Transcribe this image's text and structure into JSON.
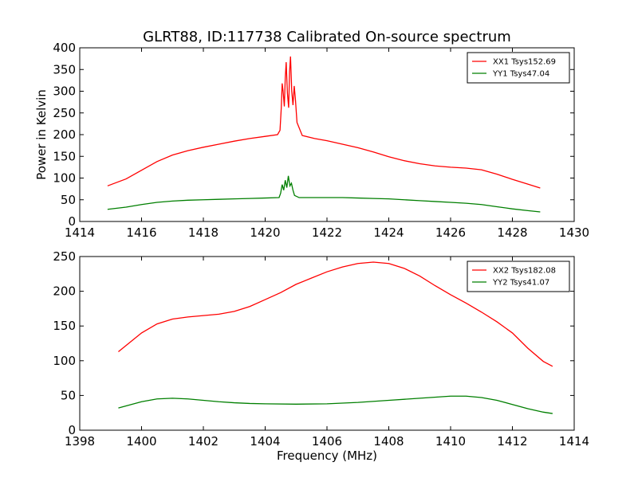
{
  "figure": {
    "title": "GLRT88, ID:117738 Calibrated On-source spectrum"
  },
  "chart_data": [
    {
      "type": "line",
      "title": "GLRT88, ID:117738 Calibrated On-source spectrum",
      "xlabel": "",
      "ylabel": "Power in Kelvin",
      "xlim": [
        1414,
        1430
      ],
      "ylim": [
        0,
        400
      ],
      "xticks": [
        1414,
        1416,
        1418,
        1420,
        1422,
        1424,
        1426,
        1428,
        1430
      ],
      "yticks": [
        0,
        50,
        100,
        150,
        200,
        250,
        300,
        350,
        400
      ],
      "legend_position": "top-right",
      "grid": false,
      "series": [
        {
          "name": "XX1 Tsys152.69",
          "color": "#ff0000",
          "points": [
            [
              1414.9,
              82
            ],
            [
              1415.5,
              98
            ],
            [
              1416.0,
              118
            ],
            [
              1416.5,
              138
            ],
            [
              1417.0,
              153
            ],
            [
              1417.5,
              163
            ],
            [
              1418.0,
              171
            ],
            [
              1418.5,
              178
            ],
            [
              1419.0,
              185
            ],
            [
              1419.5,
              191
            ],
            [
              1420.0,
              196
            ],
            [
              1420.4,
              200
            ],
            [
              1420.48,
              210
            ],
            [
              1420.52,
              260
            ],
            [
              1420.55,
              318
            ],
            [
              1420.58,
              300
            ],
            [
              1420.62,
              265
            ],
            [
              1420.65,
              330
            ],
            [
              1420.68,
              367
            ],
            [
              1420.72,
              295
            ],
            [
              1420.76,
              262
            ],
            [
              1420.79,
              345
            ],
            [
              1420.82,
              380
            ],
            [
              1420.86,
              300
            ],
            [
              1420.9,
              268
            ],
            [
              1420.94,
              312
            ],
            [
              1420.98,
              280
            ],
            [
              1421.03,
              228
            ],
            [
              1421.2,
              198
            ],
            [
              1421.6,
              191
            ],
            [
              1422.0,
              186
            ],
            [
              1422.5,
              178
            ],
            [
              1423.0,
              170
            ],
            [
              1423.5,
              160
            ],
            [
              1424.0,
              149
            ],
            [
              1424.5,
              140
            ],
            [
              1425.0,
              133
            ],
            [
              1425.5,
              128
            ],
            [
              1426.0,
              125
            ],
            [
              1426.5,
              123
            ],
            [
              1427.0,
              119
            ],
            [
              1427.5,
              109
            ],
            [
              1428.0,
              97
            ],
            [
              1428.5,
              86
            ],
            [
              1428.9,
              77
            ]
          ]
        },
        {
          "name": "YY1 Tsys47.04",
          "color": "#007f00",
          "points": [
            [
              1414.9,
              28
            ],
            [
              1415.5,
              33
            ],
            [
              1416.0,
              39
            ],
            [
              1416.5,
              44
            ],
            [
              1417.0,
              47
            ],
            [
              1417.5,
              49
            ],
            [
              1418.0,
              50
            ],
            [
              1418.5,
              51
            ],
            [
              1419.0,
              52
            ],
            [
              1419.5,
              53
            ],
            [
              1420.0,
              54
            ],
            [
              1420.45,
              55
            ],
            [
              1420.5,
              65
            ],
            [
              1420.55,
              85
            ],
            [
              1420.6,
              72
            ],
            [
              1420.65,
              95
            ],
            [
              1420.7,
              78
            ],
            [
              1420.75,
              105
            ],
            [
              1420.8,
              82
            ],
            [
              1420.85,
              88
            ],
            [
              1420.9,
              72
            ],
            [
              1420.95,
              60
            ],
            [
              1421.1,
              55
            ],
            [
              1421.5,
              55
            ],
            [
              1422.0,
              55
            ],
            [
              1422.5,
              55
            ],
            [
              1423.0,
              54
            ],
            [
              1423.5,
              53
            ],
            [
              1424.0,
              52
            ],
            [
              1424.5,
              50
            ],
            [
              1425.0,
              48
            ],
            [
              1425.5,
              46
            ],
            [
              1426.0,
              44
            ],
            [
              1426.5,
              42
            ],
            [
              1427.0,
              39
            ],
            [
              1427.5,
              34
            ],
            [
              1428.0,
              29
            ],
            [
              1428.5,
              25
            ],
            [
              1428.9,
              22
            ]
          ]
        }
      ]
    },
    {
      "type": "line",
      "title": "",
      "xlabel": "Frequency (MHz)",
      "ylabel": "",
      "xlim": [
        1398,
        1414
      ],
      "ylim": [
        0,
        250
      ],
      "xticks": [
        1398,
        1400,
        1402,
        1404,
        1406,
        1408,
        1410,
        1412,
        1414
      ],
      "yticks": [
        0,
        50,
        100,
        150,
        200,
        250
      ],
      "legend_position": "top-right",
      "grid": false,
      "series": [
        {
          "name": "XX2 Tsys182.08",
          "color": "#ff0000",
          "points": [
            [
              1399.25,
              113
            ],
            [
              1399.5,
              122
            ],
            [
              1400.0,
              140
            ],
            [
              1400.5,
              153
            ],
            [
              1401.0,
              160
            ],
            [
              1401.5,
              163
            ],
            [
              1402.0,
              165
            ],
            [
              1402.5,
              167
            ],
            [
              1403.0,
              171
            ],
            [
              1403.5,
              178
            ],
            [
              1404.0,
              188
            ],
            [
              1404.5,
              198
            ],
            [
              1405.0,
              210
            ],
            [
              1405.5,
              219
            ],
            [
              1406.0,
              228
            ],
            [
              1406.5,
              235
            ],
            [
              1407.0,
              240
            ],
            [
              1407.5,
              242
            ],
            [
              1408.0,
              240
            ],
            [
              1408.5,
              233
            ],
            [
              1409.0,
              222
            ],
            [
              1409.5,
              208
            ],
            [
              1410.0,
              195
            ],
            [
              1410.5,
              183
            ],
            [
              1411.0,
              170
            ],
            [
              1411.5,
              156
            ],
            [
              1412.0,
              140
            ],
            [
              1412.5,
              118
            ],
            [
              1413.0,
              99
            ],
            [
              1413.3,
              92
            ]
          ]
        },
        {
          "name": "YY2 Tsys41.07",
          "color": "#007f00",
          "points": [
            [
              1399.25,
              32
            ],
            [
              1399.5,
              35
            ],
            [
              1400.0,
              41
            ],
            [
              1400.5,
              45
            ],
            [
              1401.0,
              46
            ],
            [
              1401.5,
              45
            ],
            [
              1402.0,
              43
            ],
            [
              1402.5,
              41
            ],
            [
              1403.0,
              39.5
            ],
            [
              1403.5,
              38.5
            ],
            [
              1404.0,
              38
            ],
            [
              1405.0,
              37.5
            ],
            [
              1406.0,
              38
            ],
            [
              1407.0,
              40
            ],
            [
              1408.0,
              43
            ],
            [
              1409.0,
              46
            ],
            [
              1410.0,
              49
            ],
            [
              1410.5,
              49
            ],
            [
              1411.0,
              47
            ],
            [
              1411.5,
              43
            ],
            [
              1412.0,
              37
            ],
            [
              1412.5,
              31
            ],
            [
              1413.0,
              26
            ],
            [
              1413.3,
              24
            ]
          ]
        }
      ]
    }
  ]
}
